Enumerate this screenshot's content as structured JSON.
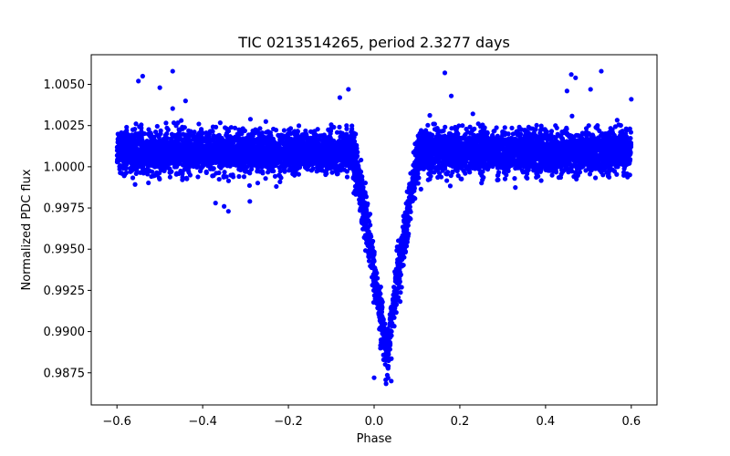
{
  "chart_data": {
    "type": "scatter",
    "title": "TIC 0213514265, period 2.3277 days",
    "xlabel": "Phase",
    "ylabel": "Normalized PDC flux",
    "xlim": [
      -0.66,
      0.66
    ],
    "ylim": [
      0.98555,
      1.0068
    ],
    "xticks": [
      -0.6,
      -0.4,
      -0.2,
      0.0,
      0.2,
      0.4,
      0.6
    ],
    "xtick_labels": [
      "−0.6",
      "−0.4",
      "−0.2",
      "0.0",
      "0.2",
      "0.4",
      "0.6"
    ],
    "yticks": [
      0.9875,
      0.99,
      0.9925,
      0.995,
      0.9975,
      1.0,
      1.0025,
      1.005
    ],
    "ytick_labels": [
      "0.9875",
      "0.9900",
      "0.9925",
      "0.9950",
      "0.9975",
      "1.0000",
      "1.0025",
      "1.0050"
    ],
    "grid": false,
    "series": [
      {
        "name": "PDC flux",
        "color": "#0000ff",
        "x_range": [
          -0.6,
          0.6
        ],
        "baseline_flux": 1.0009,
        "scatter_sigma": 0.0006,
        "eclipse": {
          "center_phase": 0.03,
          "min_flux": 0.9885,
          "ingress_phase": -0.05,
          "egress_phase": 0.105
        },
        "outliers": [
          [
            -0.47,
            1.0058
          ],
          [
            0.53,
            1.0058
          ],
          [
            0.165,
            1.0057
          ],
          [
            -0.54,
            1.0055
          ],
          [
            0.47,
            1.0054
          ],
          [
            -0.55,
            1.0052
          ],
          [
            0.46,
            1.0056
          ],
          [
            -0.06,
            1.0047
          ],
          [
            -0.08,
            1.0042
          ],
          [
            -0.5,
            1.0048
          ],
          [
            0.505,
            1.0047
          ],
          [
            0.6,
            1.0041
          ],
          [
            -0.44,
            1.004
          ],
          [
            -0.35,
            0.9976
          ],
          [
            -0.29,
            0.9979
          ],
          [
            -0.34,
            0.9973
          ],
          [
            -0.37,
            0.9978
          ],
          [
            0.0,
            0.9872
          ],
          [
            0.04,
            0.987
          ],
          [
            0.45,
            1.0046
          ],
          [
            0.18,
            1.0043
          ]
        ]
      }
    ]
  }
}
